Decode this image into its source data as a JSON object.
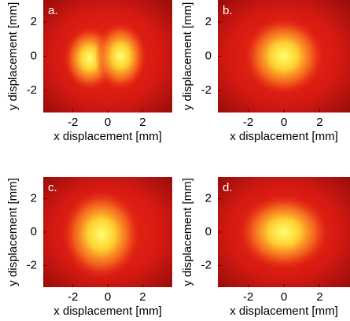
{
  "chart_data": [
    {
      "type": "image",
      "panel_label": "a.",
      "xlabel": "x displacement [mm]",
      "ylabel": "y displacement [mm]",
      "xlim": [
        -3.7,
        3.7
      ],
      "ylim": [
        -3.3,
        3.3
      ],
      "xticks": [
        -2,
        0,
        2
      ],
      "yticks": [
        -2,
        0,
        2
      ]
    },
    {
      "type": "image",
      "panel_label": "b.",
      "xlabel": "x displacement [mm]",
      "ylabel": "y displacement [mm]",
      "xlim": [
        -3.7,
        3.7
      ],
      "ylim": [
        -3.3,
        3.3
      ],
      "xticks": [
        -2,
        0,
        2
      ],
      "yticks": [
        -2,
        0,
        2
      ]
    },
    {
      "type": "image",
      "panel_label": "c.",
      "xlabel": "x displacement [mm]",
      "ylabel": "y displacement [mm]",
      "xlim": [
        -3.7,
        3.7
      ],
      "ylim": [
        -3.3,
        3.3
      ],
      "xticks": [
        -2,
        0,
        2
      ],
      "yticks": [
        -2,
        0,
        2
      ]
    },
    {
      "type": "image",
      "panel_label": "d.",
      "xlabel": "x displacement [mm]",
      "ylabel": "y displacement [mm]",
      "xlim": [
        -3.7,
        3.7
      ],
      "ylim": [
        -3.3,
        3.3
      ],
      "xticks": [
        -2,
        0,
        2
      ],
      "yticks": [
        -2,
        0,
        2
      ]
    }
  ]
}
